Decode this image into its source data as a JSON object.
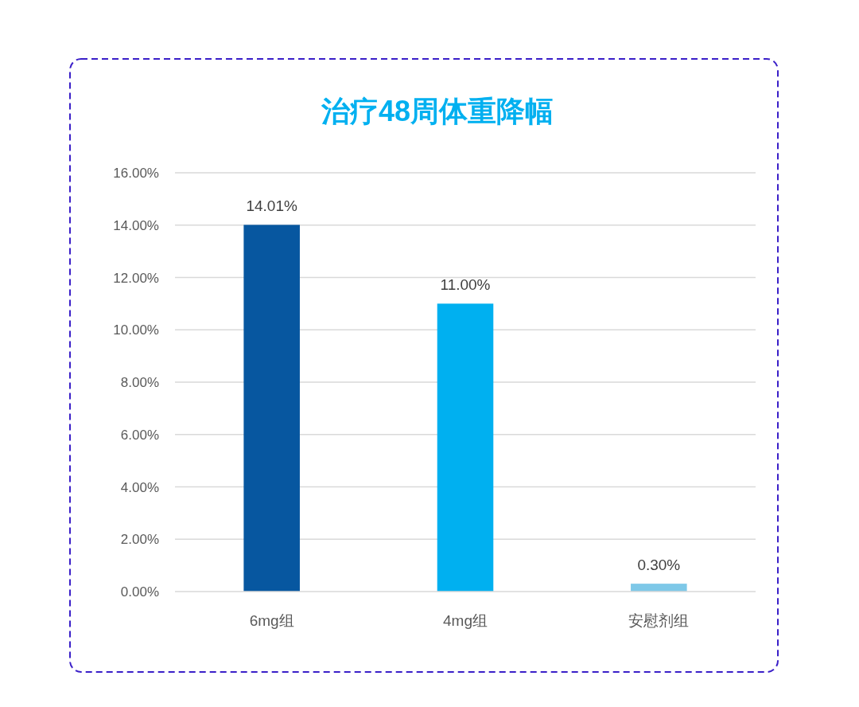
{
  "chart_data": {
    "type": "bar",
    "title": "治疗48周体重降幅",
    "categories": [
      "6mg组",
      "4mg组",
      "安慰剂组"
    ],
    "values": [
      14.01,
      11.0,
      0.3
    ],
    "colors": [
      "#0757a0",
      "#00b0f0",
      "#7ec8e8"
    ],
    "value_labels": [
      "14.01%",
      "11.00%",
      "0.30%"
    ],
    "ylim": [
      0,
      16
    ],
    "yticks": [
      {
        "value": 0,
        "label": "0.00%"
      },
      {
        "value": 2,
        "label": "2.00%"
      },
      {
        "value": 4,
        "label": "4.00%"
      },
      {
        "value": 6,
        "label": "6.00%"
      },
      {
        "value": 8,
        "label": "8.00%"
      },
      {
        "value": 10,
        "label": "10.00%"
      },
      {
        "value": 12,
        "label": "12.00%"
      },
      {
        "value": 14,
        "label": "14.00%"
      },
      {
        "value": 16,
        "label": "16.00%"
      }
    ],
    "grid": "y"
  }
}
